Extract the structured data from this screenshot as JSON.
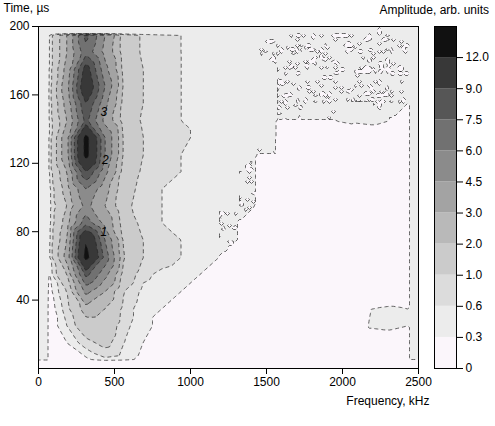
{
  "chart_data": {
    "type": "contour",
    "x_label": "Frequency, kHz",
    "y_label": "Time, µs",
    "xlim": [
      0,
      2500
    ],
    "ylim": [
      0,
      200
    ],
    "xticks": [
      0,
      500,
      1000,
      1500,
      2000,
      2500
    ],
    "yticks": [
      40,
      80,
      120,
      160,
      200
    ],
    "grid": false,
    "x": [
      62.5,
      187.5,
      312.5,
      437.5,
      562.5,
      687.5,
      812.5,
      937.5,
      1062.5,
      1187.5,
      1312.5,
      1437.5,
      1562.5,
      1687.5,
      1812.5,
      1937.5,
      2062.5,
      2187.5,
      2312.5,
      2437.5
    ],
    "y": [
      5,
      15,
      25,
      35,
      45,
      55,
      65,
      75,
      85,
      95,
      105,
      115,
      125,
      135,
      145,
      155,
      165,
      175,
      185,
      195
    ],
    "z": [
      [
        0,
        0,
        0.2,
        0.5,
        0.4,
        0.2,
        0,
        0,
        0,
        0,
        0,
        0,
        0,
        0,
        0,
        0,
        0,
        0,
        0,
        0
      ],
      [
        0,
        0.3,
        0.8,
        1.2,
        0.6,
        0.3,
        0.1,
        0,
        0,
        0,
        0,
        0,
        0,
        0,
        0,
        0,
        0,
        0,
        0,
        0
      ],
      [
        0,
        0.6,
        1.5,
        1.5,
        0.7,
        0.4,
        0.2,
        0.1,
        0,
        0,
        0,
        0,
        0,
        0,
        0,
        0,
        0,
        0.35,
        0.4,
        0.3
      ],
      [
        0,
        0.8,
        2.5,
        2,
        0.8,
        0.4,
        0.3,
        0.2,
        0.1,
        0,
        0,
        0,
        0,
        0,
        0,
        0,
        0,
        0.3,
        0.35,
        0.3
      ],
      [
        0.1,
        1,
        5,
        3,
        1,
        0.5,
        0.4,
        0.3,
        0.2,
        0.1,
        0.1,
        0,
        0,
        0,
        0,
        0,
        0,
        0,
        0,
        0
      ],
      [
        0.2,
        2,
        8,
        5,
        1.5,
        0.7,
        0.5,
        0.4,
        0.3,
        0.2,
        0.1,
        0.1,
        0,
        0,
        0,
        0,
        0,
        0,
        0,
        0
      ],
      [
        0.3,
        3.5,
        13,
        7,
        2,
        1,
        0.8,
        0.6,
        0.4,
        0.3,
        0.2,
        0.1,
        0.1,
        0,
        0,
        0,
        0,
        0,
        0,
        0
      ],
      [
        0.3,
        3,
        12,
        6,
        1.8,
        1,
        0.8,
        0.6,
        0.4,
        0.3,
        0.3,
        0.2,
        0.1,
        0,
        0,
        0,
        0,
        0,
        0,
        0
      ],
      [
        0.3,
        2.5,
        7,
        4,
        1.5,
        0.8,
        0.6,
        0.5,
        0.4,
        0.3,
        0.3,
        0.2,
        0.2,
        0.1,
        0,
        0,
        0,
        0,
        0,
        0
      ],
      [
        0.3,
        2,
        5,
        3,
        1.2,
        0.7,
        0.6,
        0.5,
        0.4,
        0.3,
        0.3,
        0.3,
        0.2,
        0.1,
        0.1,
        0,
        0,
        0,
        0,
        0
      ],
      [
        0.3,
        2.5,
        6,
        3.5,
        1.3,
        0.8,
        0.6,
        0.5,
        0.4,
        0.4,
        0.3,
        0.3,
        0.2,
        0.1,
        0.1,
        0,
        0,
        0,
        0,
        0
      ],
      [
        0.4,
        3,
        9,
        5,
        1.5,
        0.9,
        0.7,
        0.6,
        0.5,
        0.4,
        0.3,
        0.3,
        0.2,
        0.2,
        0.1,
        0,
        0,
        0,
        0,
        0
      ],
      [
        0.4,
        4,
        13,
        6,
        1.8,
        1,
        0.8,
        0.6,
        0.5,
        0.4,
        0.4,
        0.3,
        0.3,
        0.2,
        0.1,
        0,
        0,
        0,
        0,
        0
      ],
      [
        0.4,
        4,
        13,
        6,
        1.8,
        1,
        0.8,
        0.7,
        0.5,
        0.4,
        0.4,
        0.3,
        0.3,
        0.2,
        0.2,
        0.1,
        0.1,
        0,
        0,
        0
      ],
      [
        0.4,
        3,
        8,
        4,
        1.5,
        0.9,
        0.8,
        0.6,
        0.5,
        0.4,
        0.4,
        0.4,
        0.3,
        0.3,
        0.3,
        0.3,
        0.35,
        0.4,
        0.3,
        0.2
      ],
      [
        0.4,
        3.5,
        9,
        5,
        1.6,
        1,
        0.8,
        0.6,
        0.5,
        0.4,
        0.4,
        0.4,
        0.3,
        0.3,
        0.3,
        0.3,
        0.3,
        0.3,
        0.3,
        0.3
      ],
      [
        0.4,
        4,
        11,
        6,
        1.8,
        1,
        0.8,
        0.6,
        0.5,
        0.4,
        0.4,
        0.4,
        0.3,
        0.3,
        0.3,
        0.3,
        0.3,
        0.3,
        0.3,
        0.3
      ],
      [
        0.4,
        3.5,
        10,
        5,
        1.6,
        1,
        0.8,
        0.6,
        0.5,
        0.4,
        0.4,
        0.4,
        0.3,
        0.3,
        0.3,
        0.3,
        0.3,
        0.3,
        0.3,
        0.3
      ],
      [
        0.4,
        3,
        7,
        4,
        1.5,
        0.9,
        0.7,
        0.6,
        0.5,
        0.4,
        0.4,
        0.3,
        0.3,
        0.3,
        0.3,
        0.3,
        0.3,
        0.3,
        0.3,
        0.3
      ],
      [
        0.4,
        3,
        8,
        4.5,
        1.5,
        0.9,
        0.7,
        0.6,
        0.5,
        0.4,
        0.4,
        0.3,
        0.3,
        0.3,
        0.3,
        0.3,
        0.3,
        0.3,
        0.3,
        0.3
      ]
    ],
    "colorbar": {
      "title": "Amplitude, arb. units",
      "levels": [
        0,
        0.3,
        0.6,
        {
          "value": 1,
          "label": "1.0"
        },
        {
          "value": 2,
          "label": "2.0"
        },
        {
          "value": 3,
          "label": "3.0"
        },
        4.5,
        {
          "value": 6,
          "label": "6.0"
        },
        7.5,
        {
          "value": 9,
          "label": "9.0"
        },
        {
          "value": 12,
          "label": "12.0"
        }
      ],
      "colors": [
        "#fbf6fb",
        "#ececec",
        "#dcdcdc",
        "#cbcbcb",
        "#b9b9b9",
        "#a3a3a3",
        "#8b8b8b",
        "#717171",
        "#565656",
        "#383838",
        "#111111"
      ]
    },
    "annotations": [
      {
        "text": "1",
        "x": 430,
        "y": 80
      },
      {
        "text": "2",
        "x": 440,
        "y": 122
      },
      {
        "text": "3",
        "x": 430,
        "y": 150
      }
    ]
  }
}
